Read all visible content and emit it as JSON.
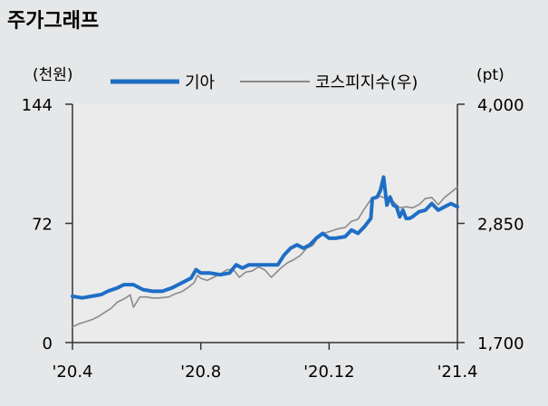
{
  "chart_data": {
    "type": "line",
    "title": "주가그래프",
    "y_left": {
      "unit_label": "(천원)",
      "ticks": [
        "144",
        "72",
        "0"
      ],
      "ylim": [
        0,
        144
      ]
    },
    "y_right": {
      "unit_label": "(pt)",
      "ticks": [
        "4,000",
        "2,850",
        "1,700"
      ],
      "ylim": [
        1700,
        4000
      ]
    },
    "x_ticks": [
      {
        "label": "'20.4",
        "t": 0
      },
      {
        "label": "'20.8",
        "t": 4
      },
      {
        "label": "'20.12",
        "t": 8
      },
      {
        "label": "'21.4",
        "t": 12
      }
    ],
    "xlim": [
      0,
      12
    ],
    "legend_placement": "top",
    "grid": false,
    "series": [
      {
        "name": "기아",
        "axis": "left",
        "color": "#1f6ec5",
        "points": [
          [
            0,
            28
          ],
          [
            0.3,
            27
          ],
          [
            0.6,
            28
          ],
          [
            0.9,
            29
          ],
          [
            1.1,
            31
          ],
          [
            1.4,
            33
          ],
          [
            1.6,
            35
          ],
          [
            1.9,
            35
          ],
          [
            2.2,
            32
          ],
          [
            2.5,
            31
          ],
          [
            2.8,
            31
          ],
          [
            3.1,
            33
          ],
          [
            3.4,
            36
          ],
          [
            3.7,
            39
          ],
          [
            3.85,
            44
          ],
          [
            4.0,
            42
          ],
          [
            4.3,
            42
          ],
          [
            4.6,
            41
          ],
          [
            4.9,
            42
          ],
          [
            5.1,
            47
          ],
          [
            5.3,
            45
          ],
          [
            5.5,
            47
          ],
          [
            5.8,
            47
          ],
          [
            6.0,
            47
          ],
          [
            6.2,
            47
          ],
          [
            6.4,
            47
          ],
          [
            6.6,
            53
          ],
          [
            6.8,
            57
          ],
          [
            7.0,
            59
          ],
          [
            7.2,
            57
          ],
          [
            7.4,
            59
          ],
          [
            7.6,
            63
          ],
          [
            7.8,
            66
          ],
          [
            8.0,
            63
          ],
          [
            8.2,
            63
          ],
          [
            8.5,
            64
          ],
          [
            8.7,
            68
          ],
          [
            8.9,
            66
          ],
          [
            9.0,
            68
          ],
          [
            9.1,
            70
          ],
          [
            9.3,
            75
          ],
          [
            9.35,
            87
          ],
          [
            9.5,
            88
          ],
          [
            9.6,
            92
          ],
          [
            9.7,
            100
          ],
          [
            9.8,
            83
          ],
          [
            9.9,
            88
          ],
          [
            10.0,
            83
          ],
          [
            10.1,
            82
          ],
          [
            10.2,
            76
          ],
          [
            10.3,
            80
          ],
          [
            10.4,
            75
          ],
          [
            10.5,
            75
          ],
          [
            10.6,
            76
          ],
          [
            10.8,
            79
          ],
          [
            11.0,
            80
          ],
          [
            11.2,
            84
          ],
          [
            11.4,
            80
          ],
          [
            11.6,
            82
          ],
          [
            11.8,
            84
          ],
          [
            12.0,
            82
          ]
        ]
      },
      {
        "name": "코스피지수(우)",
        "axis": "right",
        "color": "#8a8a8a",
        "points": [
          [
            0,
            1850
          ],
          [
            0.2,
            1880
          ],
          [
            0.4,
            1900
          ],
          [
            0.6,
            1920
          ],
          [
            0.8,
            1950
          ],
          [
            1.0,
            1990
          ],
          [
            1.2,
            2030
          ],
          [
            1.4,
            2090
          ],
          [
            1.6,
            2120
          ],
          [
            1.8,
            2160
          ],
          [
            1.9,
            2040
          ],
          [
            2.1,
            2140
          ],
          [
            2.3,
            2140
          ],
          [
            2.5,
            2130
          ],
          [
            2.7,
            2130
          ],
          [
            3.0,
            2140
          ],
          [
            3.2,
            2170
          ],
          [
            3.4,
            2190
          ],
          [
            3.6,
            2230
          ],
          [
            3.8,
            2280
          ],
          [
            3.9,
            2350
          ],
          [
            4.0,
            2320
          ],
          [
            4.2,
            2300
          ],
          [
            4.4,
            2330
          ],
          [
            4.6,
            2360
          ],
          [
            4.8,
            2400
          ],
          [
            5.0,
            2410
          ],
          [
            5.2,
            2330
          ],
          [
            5.4,
            2380
          ],
          [
            5.6,
            2390
          ],
          [
            5.8,
            2430
          ],
          [
            6.0,
            2400
          ],
          [
            6.2,
            2330
          ],
          [
            6.5,
            2420
          ],
          [
            6.7,
            2470
          ],
          [
            6.9,
            2500
          ],
          [
            7.1,
            2540
          ],
          [
            7.3,
            2610
          ],
          [
            7.5,
            2640
          ],
          [
            7.7,
            2740
          ],
          [
            7.9,
            2760
          ],
          [
            8.1,
            2780
          ],
          [
            8.3,
            2800
          ],
          [
            8.5,
            2810
          ],
          [
            8.7,
            2870
          ],
          [
            8.9,
            2890
          ],
          [
            9.1,
            2990
          ],
          [
            9.3,
            3080
          ],
          [
            9.4,
            3090
          ],
          [
            9.5,
            3120
          ],
          [
            9.7,
            3100
          ],
          [
            9.9,
            3080
          ],
          [
            10.0,
            3060
          ],
          [
            10.2,
            3000
          ],
          [
            10.4,
            3010
          ],
          [
            10.6,
            3000
          ],
          [
            10.8,
            3030
          ],
          [
            11.0,
            3090
          ],
          [
            11.2,
            3100
          ],
          [
            11.4,
            3030
          ],
          [
            11.6,
            3100
          ],
          [
            11.8,
            3150
          ],
          [
            12.0,
            3200
          ]
        ]
      }
    ]
  }
}
